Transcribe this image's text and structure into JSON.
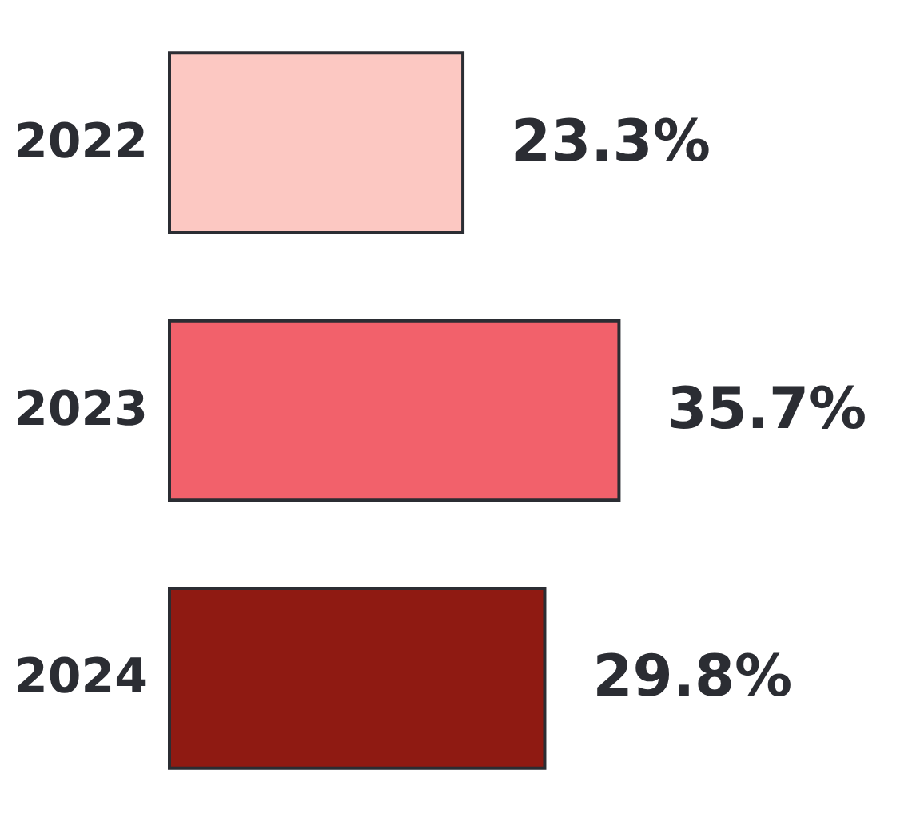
{
  "chart_data": {
    "type": "bar",
    "orientation": "horizontal",
    "categories": [
      "2022",
      "2023",
      "2024"
    ],
    "values": [
      23.3,
      35.7,
      29.8
    ],
    "colors": [
      "#fcc8c2",
      "#f2616b",
      "#8f1a12"
    ],
    "value_labels": [
      "23.3%",
      "35.7%",
      "29.8%"
    ]
  }
}
